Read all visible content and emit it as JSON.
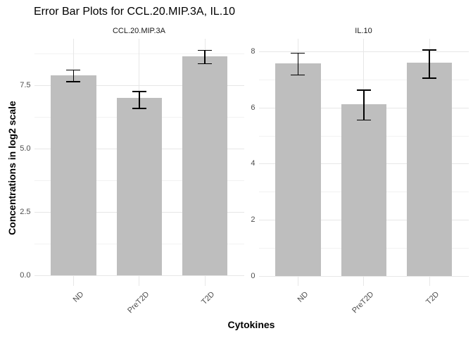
{
  "title": "Error Bar Plots for CCL.20.MIP.3A, IL.10",
  "x_axis_title": "Cytokines",
  "y_axis_title": "Concentrations in log2 scale",
  "chart_data": [
    {
      "type": "bar",
      "facet_label": "CCL.20.MIP.3A",
      "categories": [
        "ND",
        "PreT2D",
        "T2D"
      ],
      "values": [
        7.89,
        6.99,
        8.65
      ],
      "error_low": [
        7.66,
        6.6,
        8.36
      ],
      "error_high": [
        8.12,
        7.27,
        8.89
      ],
      "y_tick_labels": [
        "0.0",
        "2.5",
        "5.0",
        "7.5"
      ],
      "y_ticks": [
        0,
        2.5,
        5,
        7.5
      ],
      "y_minor_ticks": [
        1.25,
        3.75,
        6.25,
        8.75
      ],
      "ylim": [
        -0.41,
        9.33
      ],
      "legend": "none",
      "grid": "on"
    },
    {
      "type": "bar",
      "facet_label": "IL.10",
      "categories": [
        "ND",
        "PreT2D",
        "T2D"
      ],
      "values": [
        7.58,
        6.13,
        7.6
      ],
      "error_low": [
        7.19,
        5.58,
        7.07
      ],
      "error_high": [
        7.96,
        6.65,
        8.08
      ],
      "y_tick_labels": [
        "0",
        "2",
        "4",
        "6",
        "8"
      ],
      "y_ticks": [
        0,
        2,
        4,
        6,
        8
      ],
      "y_minor_ticks": [
        1,
        3,
        5,
        7
      ],
      "ylim": [
        -0.36,
        8.46
      ],
      "legend": "none",
      "grid": "on"
    }
  ],
  "colors": {
    "bar_fill": "#bebebe",
    "error_bar": "#000000",
    "grid_major": "#e7e7e7",
    "grid_minor": "#f2f2f2",
    "axis_text": "#4d4d4d",
    "strip_text": "#1a1a1a",
    "title_text": "#000000",
    "background": "#ffffff"
  }
}
